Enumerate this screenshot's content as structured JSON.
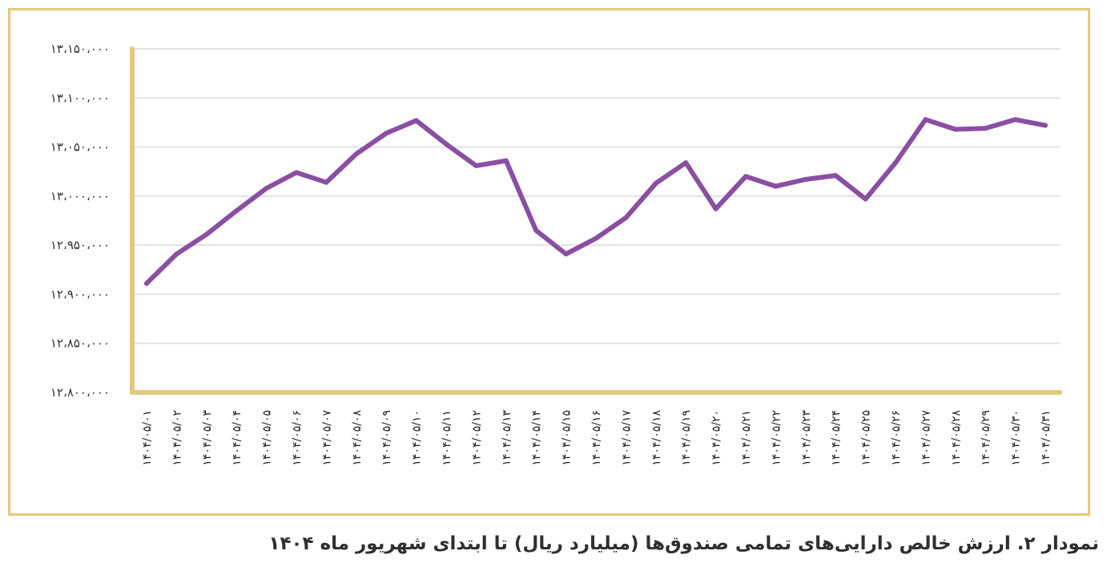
{
  "chart_data": {
    "type": "line",
    "title": "",
    "xlabel": "",
    "ylabel": "",
    "ylim": [
      12800000,
      13150000
    ],
    "y_ticks": [
      12800000,
      12850000,
      12900000,
      12950000,
      13000000,
      13050000,
      13100000,
      13150000
    ],
    "y_tick_labels": [
      "۱۲،۸۰۰،۰۰۰",
      "۱۲،۸۵۰،۰۰۰",
      "۱۲،۹۰۰،۰۰۰",
      "۱۲،۹۵۰،۰۰۰",
      "۱۳،۰۰۰،۰۰۰",
      "۱۳،۰۵۰،۰۰۰",
      "۱۳،۱۰۰،۰۰۰",
      "۱۳،۱۵۰،۰۰۰"
    ],
    "grid": true,
    "line_color": "#8a4fa3",
    "axis_color": "#e2c97c",
    "grid_color": "#e3e3e3",
    "categories": [
      "۱۴۰۴/۰۵/۰۱",
      "۱۴۰۴/۰۵/۰۲",
      "۱۴۰۴/۰۵/۰۳",
      "۱۴۰۴/۰۵/۰۴",
      "۱۴۰۴/۰۵/۰۵",
      "۱۴۰۴/۰۵/۰۶",
      "۱۴۰۴/۰۵/۰۷",
      "۱۴۰۴/۰۵/۰۸",
      "۱۴۰۴/۰۵/۰۹",
      "۱۴۰۴/۰۵/۱۰",
      "۱۴۰۴/۰۵/۱۱",
      "۱۴۰۴/۰۵/۱۲",
      "۱۴۰۴/۰۵/۱۳",
      "۱۴۰۴/۰۵/۱۴",
      "۱۴۰۴/۰۵/۱۵",
      "۱۴۰۴/۰۵/۱۶",
      "۱۴۰۴/۰۵/۱۷",
      "۱۴۰۴/۰۵/۱۸",
      "۱۴۰۴/۰۵/۱۹",
      "۱۴۰۴/۰۵/۲۰",
      "۱۴۰۴/۰۵/۲۱",
      "۱۴۰۴/۰۵/۲۲",
      "۱۴۰۴/۰۵/۲۳",
      "۱۴۰۴/۰۵/۲۴",
      "۱۴۰۴/۰۵/۲۵",
      "۱۴۰۴/۰۵/۲۶",
      "۱۴۰۴/۰۵/۲۷",
      "۱۴۰۴/۰۵/۲۸",
      "۱۴۰۴/۰۵/۲۹",
      "۱۴۰۴/۰۵/۳۰",
      "۱۴۰۴/۰۵/۳۱"
    ],
    "values": [
      12911000,
      12941000,
      12961000,
      12985000,
      13008000,
      13024000,
      13014000,
      13043000,
      13064000,
      13077000,
      13053000,
      13031000,
      13036000,
      12965000,
      12941000,
      12957000,
      12978000,
      13013000,
      13034000,
      12987000,
      13020000,
      13010000,
      13017000,
      13021000,
      12997000,
      13034000,
      13078000,
      13068000,
      13069000,
      13078000,
      13072000
    ]
  },
  "caption": "نمودار ۲. ارزش خالص دارایی‌های تمامی صندوق‌ها (میلیارد ریال) تا ابتدای شهریور ماه ۱۴۰۴"
}
